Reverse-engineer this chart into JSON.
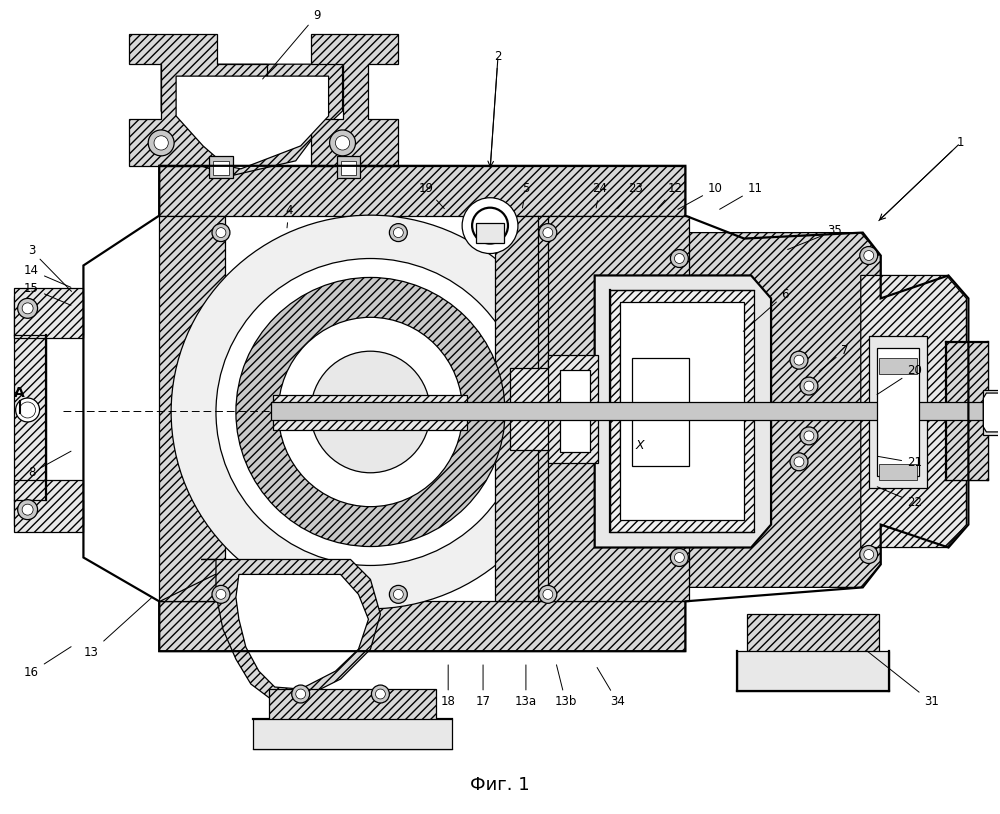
{
  "title": "Фиг. 1",
  "title_fontsize": 13,
  "bg_color": "#ffffff",
  "figsize": [
    10.0,
    8.14
  ],
  "dpi": 100,
  "annotations": [
    [
      "1",
      962,
      142,
      878,
      222
    ],
    [
      "2",
      498,
      55,
      490,
      170
    ],
    [
      "3",
      30,
      250,
      72,
      293
    ],
    [
      "4",
      288,
      210,
      286,
      230
    ],
    [
      "5",
      526,
      188,
      522,
      210
    ],
    [
      "6",
      786,
      294,
      742,
      333
    ],
    [
      "7",
      846,
      350,
      818,
      373
    ],
    [
      "8",
      30,
      473,
      72,
      450
    ],
    [
      "9",
      316,
      14,
      260,
      80
    ],
    [
      "10",
      716,
      188,
      676,
      210
    ],
    [
      "11",
      756,
      188,
      718,
      210
    ],
    [
      "12",
      676,
      188,
      656,
      210
    ],
    [
      "13",
      90,
      653,
      153,
      596
    ],
    [
      "13a",
      526,
      703,
      526,
      663
    ],
    [
      "13b",
      566,
      703,
      556,
      663
    ],
    [
      "14",
      30,
      270,
      72,
      288
    ],
    [
      "15",
      30,
      288,
      72,
      306
    ],
    [
      "16",
      30,
      673,
      72,
      646
    ],
    [
      "17",
      483,
      703,
      483,
      663
    ],
    [
      "18",
      448,
      703,
      448,
      663
    ],
    [
      "19",
      426,
      188,
      446,
      210
    ],
    [
      "20",
      916,
      370,
      876,
      396
    ],
    [
      "21",
      916,
      463,
      876,
      456
    ],
    [
      "22",
      916,
      503,
      876,
      486
    ],
    [
      "23",
      636,
      188,
      616,
      210
    ],
    [
      "24",
      600,
      188,
      596,
      210
    ],
    [
      "31",
      933,
      703,
      866,
      650
    ],
    [
      "34",
      618,
      703,
      596,
      666
    ],
    [
      "35",
      836,
      230,
      786,
      250
    ],
    [
      "X",
      640,
      446,
      630,
      436
    ],
    [
      "A",
      18,
      393,
      26,
      406
    ]
  ]
}
